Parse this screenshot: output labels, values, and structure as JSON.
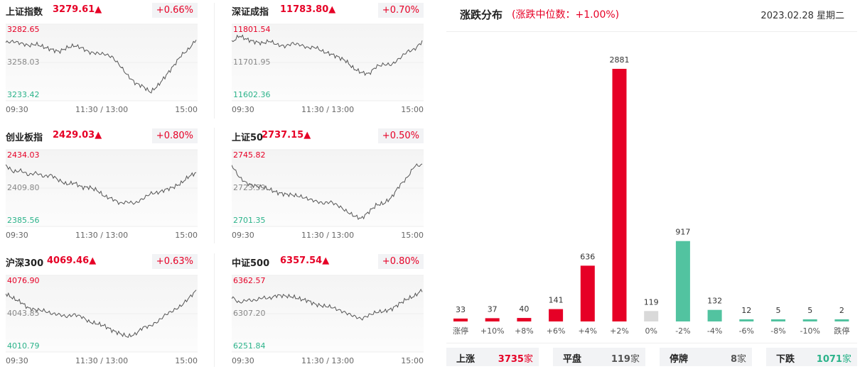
{
  "indices": [
    {
      "name": "上证指数",
      "value": "3279.61▲",
      "pct": "+0.66%",
      "hi": "3282.65",
      "mid": "3258.03",
      "lo": "3233.42",
      "t": [
        "09:30",
        "11:30 / 13:00",
        "15:00"
      ],
      "line": [
        0.52,
        0.55,
        0.5,
        0.44,
        0.48,
        0.4,
        0.34,
        0.28,
        0.38,
        0.44,
        0.38,
        0.26,
        0.24,
        0.22,
        0.14,
        -0.08,
        -0.34,
        -0.54,
        -0.62,
        -0.78,
        -0.6,
        -0.35,
        -0.1,
        0.18,
        0.34,
        0.6
      ]
    },
    {
      "name": "深证成指",
      "value": "11783.80▲",
      "pct": "+0.70%",
      "hi": "11801.54",
      "mid": "11701.95",
      "lo": "11602.36",
      "t": [
        "09:30",
        "11:30 / 13:00",
        "15:00"
      ],
      "line": [
        0.52,
        0.7,
        0.6,
        0.54,
        0.5,
        0.56,
        0.46,
        0.42,
        0.5,
        0.46,
        0.38,
        0.4,
        0.28,
        0.22,
        0.14,
        0.04,
        -0.16,
        -0.26,
        -0.3,
        -0.1,
        -0.05,
        -0.06,
        0.1,
        0.28,
        0.34,
        0.55
      ]
    },
    {
      "name": "创业板指",
      "value": "2429.03▲",
      "pct": "+0.80%",
      "hi": "2434.03",
      "mid": "2409.80",
      "lo": "2385.56",
      "t": [
        "09:30",
        "11:30 / 13:00",
        "15:00"
      ],
      "line": [
        0.6,
        0.42,
        0.46,
        0.34,
        0.4,
        0.3,
        0.34,
        0.2,
        0.1,
        0.14,
        0.02,
        0.02,
        -0.06,
        -0.22,
        -0.28,
        -0.4,
        -0.36,
        -0.4,
        -0.28,
        -0.14,
        -0.12,
        -0.04,
        0.02,
        0.12,
        0.3,
        0.4
      ]
    },
    {
      "name": "上证50",
      "value": "2737.15▲",
      "pct": "+0.50%",
      "hi": "2745.82",
      "mid": "2723.59",
      "lo": "2701.35",
      "t": [
        "09:30",
        "11:30 / 13:00",
        "15:00"
      ],
      "line": [
        0.6,
        0.28,
        0.12,
        0.06,
        0.02,
        -0.04,
        -0.12,
        -0.16,
        -0.18,
        -0.22,
        -0.28,
        -0.34,
        -0.4,
        -0.36,
        -0.46,
        -0.6,
        -0.72,
        -0.8,
        -0.62,
        -0.44,
        -0.4,
        -0.24,
        0.06,
        0.26,
        0.58,
        0.6
      ]
    },
    {
      "name": "沪深300",
      "value": "4069.46▲",
      "pct": "+0.63%",
      "hi": "4076.90",
      "mid": "4043.85",
      "lo": "4010.79",
      "t": [
        "09:30",
        "11:30 / 13:00",
        "15:00"
      ],
      "line": [
        0.52,
        0.4,
        0.3,
        0.14,
        0.1,
        0.08,
        0.0,
        -0.02,
        -0.08,
        -0.02,
        -0.08,
        -0.22,
        -0.26,
        -0.32,
        -0.44,
        -0.52,
        -0.6,
        -0.54,
        -0.36,
        -0.32,
        -0.2,
        -0.02,
        0.08,
        0.2,
        0.4,
        0.6
      ]
    },
    {
      "name": "中证500",
      "value": "6357.54▲",
      "pct": "+0.80%",
      "hi": "6362.57",
      "mid": "6307.20",
      "lo": "6251.84",
      "t": [
        "09:30",
        "11:30 / 13:00",
        "15:00"
      ],
      "line": [
        0.44,
        0.28,
        0.36,
        0.34,
        0.42,
        0.4,
        0.48,
        0.46,
        0.44,
        0.38,
        0.34,
        0.24,
        0.2,
        0.18,
        0.1,
        0.02,
        -0.06,
        -0.14,
        -0.04,
        0.04,
        0.06,
        0.12,
        0.26,
        0.38,
        0.46,
        0.62
      ]
    }
  ],
  "distribution": {
    "title": "涨跌分布",
    "subtitle": "(涨跌中位数：+1.00%)",
    "date": "2023.02.28 星期二",
    "chart_data": {
      "type": "bar",
      "categories": [
        "涨停",
        "+10%",
        "+8%",
        "+6%",
        "+4%",
        "+2%",
        "0%",
        "-2%",
        "-4%",
        "-6%",
        "-8%",
        "-10%",
        "跌停"
      ],
      "values": [
        33,
        37,
        40,
        141,
        636,
        2881,
        119,
        917,
        132,
        12,
        5,
        5,
        2
      ],
      "colors": [
        "#e60026",
        "#e60026",
        "#e60026",
        "#e60026",
        "#e60026",
        "#e60026",
        "#d9d9d9",
        "#52c3a0",
        "#52c3a0",
        "#52c3a0",
        "#52c3a0",
        "#52c3a0",
        "#52c3a0"
      ]
    }
  },
  "stats": [
    {
      "label": "上涨",
      "value": "3735",
      "unit": "家",
      "color": "#e60026"
    },
    {
      "label": "平盘",
      "value": "119",
      "unit": "家",
      "color": "#555555"
    },
    {
      "label": "停牌",
      "value": "8",
      "unit": "家",
      "color": "#555555"
    },
    {
      "label": "下跌",
      "value": "1071",
      "unit": "家",
      "color": "#2bb38a"
    }
  ]
}
